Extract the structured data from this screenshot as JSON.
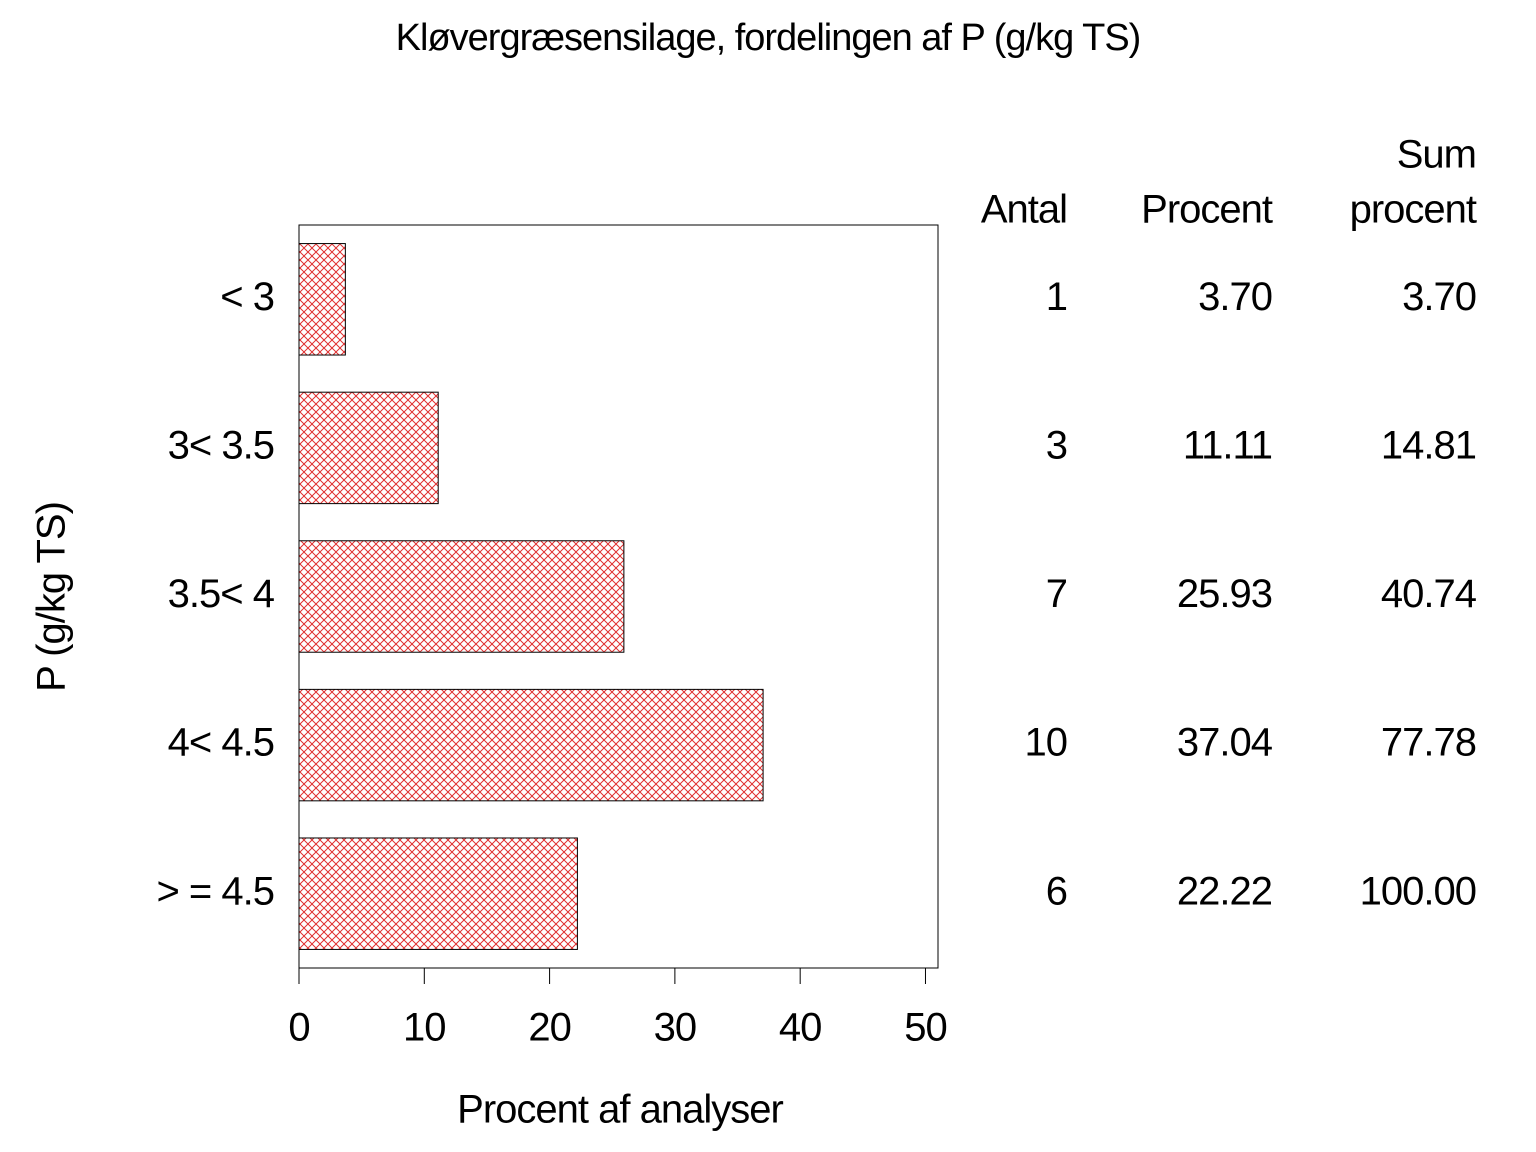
{
  "chart_data": {
    "type": "bar",
    "orientation": "horizontal",
    "title": "Kløvergræsensilage,  fordelingen  af  P  (g/kg  TS)",
    "xlabel": "Procent  af  analyser",
    "ylabel": "P  (g/kg  TS)",
    "categories": [
      "< 3",
      "3< 3.5",
      "3.5< 4",
      "4< 4.5",
      "> = 4.5"
    ],
    "values": [
      3.7,
      11.11,
      25.93,
      37.04,
      22.22
    ],
    "color": "#e03030",
    "xlim": [
      0,
      51
    ],
    "xticks": [
      0,
      10,
      20,
      30,
      40,
      50
    ],
    "table": [
      {
        "header": [
          "Antal"
        ],
        "values": [
          1,
          3,
          7,
          10,
          6
        ]
      },
      {
        "header": [
          "Procent"
        ],
        "values": [
          3.7,
          11.11,
          25.93,
          37.04,
          22.22
        ],
        "value_labels": [
          "3.70",
          "11.11",
          "25.93",
          "37.04",
          "22.22"
        ]
      },
      {
        "header": [
          "Sum",
          "procent"
        ],
        "values": [
          3.7,
          14.81,
          40.74,
          77.78,
          100
        ],
        "value_labels": [
          "3.70",
          "14.81",
          "40.74",
          "77.78",
          "100.00"
        ]
      }
    ]
  }
}
